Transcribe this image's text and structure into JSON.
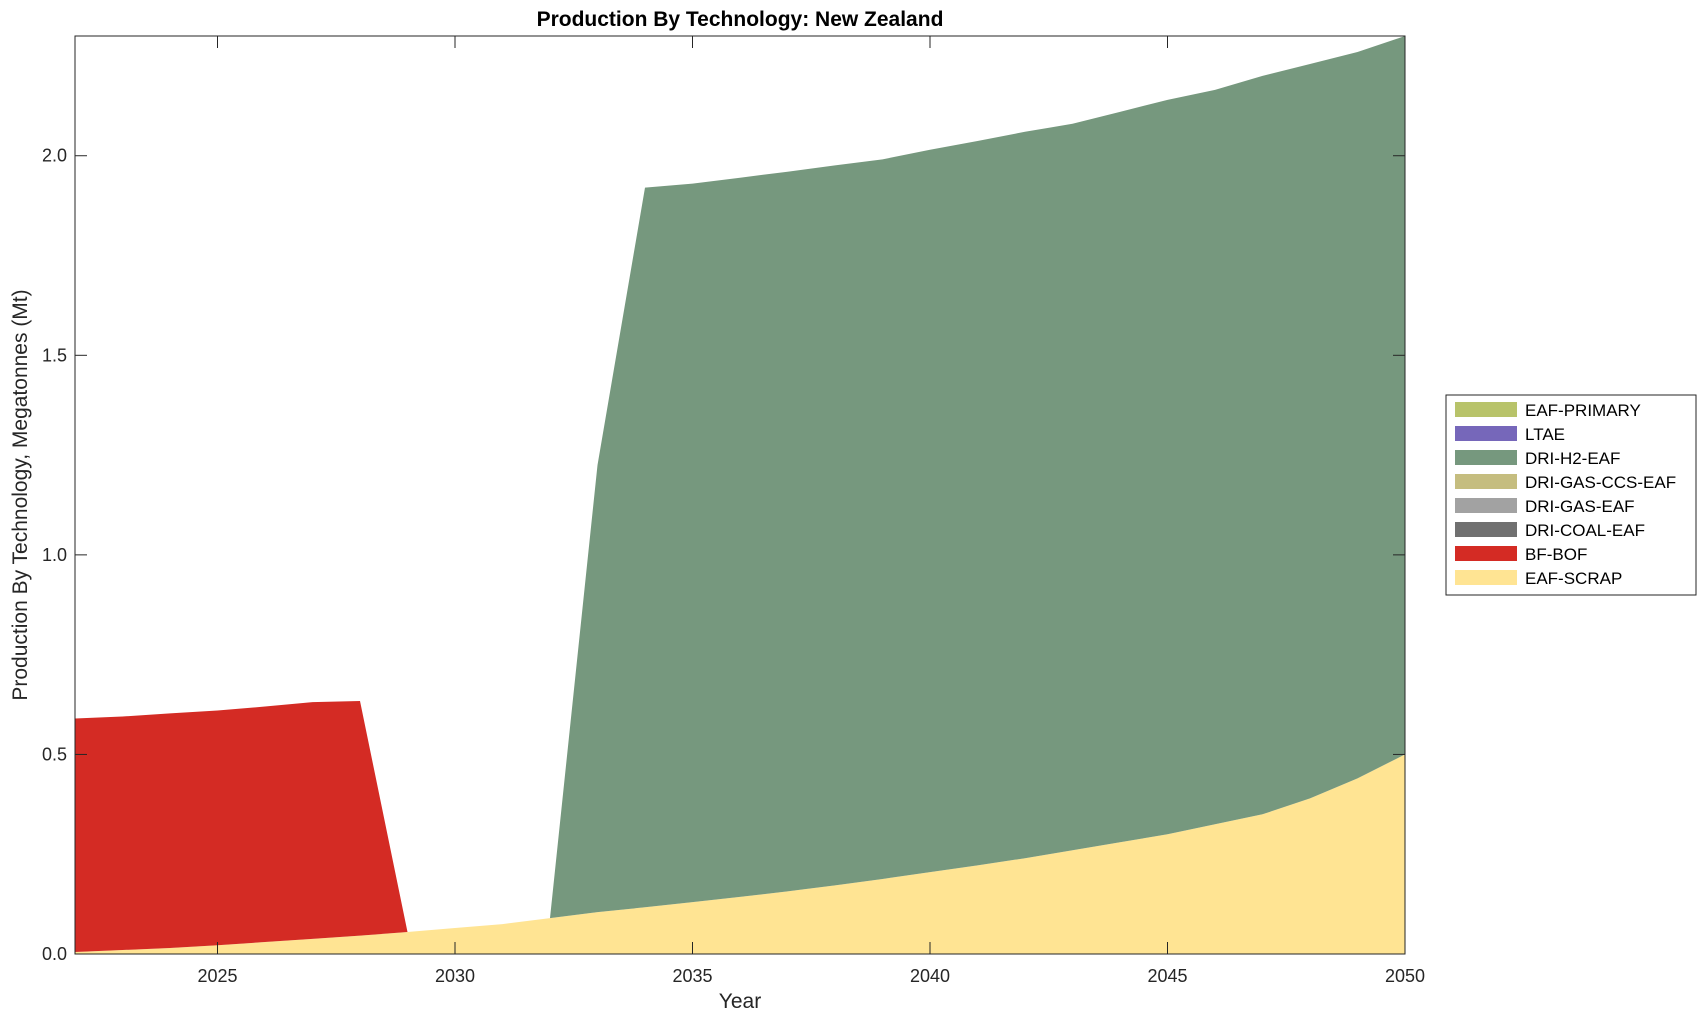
{
  "chart_data": {
    "type": "area",
    "stacked": true,
    "title": "Production By Technology: New Zealand",
    "xlabel": "Year",
    "ylabel": "Production By Technology, Megatonnes (Mt)",
    "xlim": [
      2022,
      2050
    ],
    "ylim": [
      0,
      2.3
    ],
    "xticks": [
      2025,
      2030,
      2035,
      2040,
      2045,
      2050
    ],
    "yticks": [
      0,
      0.5,
      1,
      1.5,
      2
    ],
    "ytick_labels": [
      "0.0",
      "0.5",
      "1.0",
      "1.5",
      "2.0"
    ],
    "grid": false,
    "legend_position": "right",
    "x": [
      2022,
      2023,
      2024,
      2025,
      2026,
      2027,
      2028,
      2029,
      2030,
      2031,
      2032,
      2033,
      2034,
      2035,
      2036,
      2037,
      2038,
      2039,
      2040,
      2041,
      2042,
      2043,
      2044,
      2045,
      2046,
      2047,
      2048,
      2049,
      2050
    ],
    "series": [
      {
        "name": "EAF-SCRAP",
        "color": "#FFE493",
        "values": [
          0.005,
          0.01,
          0.015,
          0.022,
          0.03,
          0.038,
          0.046,
          0.055,
          0.065,
          0.075,
          0.09,
          0.105,
          0.117,
          0.13,
          0.143,
          0.157,
          0.172,
          0.188,
          0.205,
          0.222,
          0.24,
          0.26,
          0.28,
          0.3,
          0.325,
          0.35,
          0.39,
          0.44,
          0.5
        ]
      },
      {
        "name": "BF-BOF",
        "color": "#D42B24",
        "values": [
          0.585,
          0.585,
          0.588,
          0.588,
          0.59,
          0.593,
          0.588,
          0,
          0,
          0,
          0,
          0,
          0,
          0,
          0,
          0,
          0,
          0,
          0,
          0,
          0,
          0,
          0,
          0,
          0,
          0,
          0,
          0,
          0
        ]
      },
      {
        "name": "DRI-COAL-EAF",
        "color": "#707070",
        "values": [
          0,
          0,
          0,
          0,
          0,
          0,
          0,
          0,
          0,
          0,
          0,
          0,
          0,
          0,
          0,
          0,
          0,
          0,
          0,
          0,
          0,
          0,
          0,
          0,
          0,
          0,
          0,
          0,
          0
        ]
      },
      {
        "name": "DRI-GAS-EAF",
        "color": "#A2A2A2",
        "values": [
          0,
          0,
          0,
          0,
          0,
          0,
          0,
          0,
          0,
          0,
          0,
          0,
          0,
          0,
          0,
          0,
          0,
          0,
          0,
          0,
          0,
          0,
          0,
          0,
          0,
          0,
          0,
          0,
          0
        ]
      },
      {
        "name": "DRI-GAS-CCS-EAF",
        "color": "#C5BD7F",
        "values": [
          0,
          0,
          0,
          0,
          0,
          0,
          0,
          0,
          0,
          0,
          0,
          0,
          0,
          0,
          0,
          0,
          0,
          0,
          0,
          0,
          0,
          0,
          0,
          0,
          0,
          0,
          0,
          0,
          0
        ]
      },
      {
        "name": "DRI-H2-EAF",
        "color": "#76987E",
        "values": [
          0,
          0,
          0,
          0,
          0,
          0,
          0,
          0,
          0,
          0,
          0,
          1.12,
          1.803,
          1.8,
          1.802,
          1.803,
          1.804,
          1.803,
          1.81,
          1.815,
          1.82,
          1.82,
          1.83,
          1.84,
          1.84,
          1.85,
          1.84,
          1.82,
          1.8
        ]
      },
      {
        "name": "LTAE",
        "color": "#7667BA",
        "values": [
          0,
          0,
          0,
          0,
          0,
          0,
          0,
          0,
          0,
          0,
          0,
          0,
          0,
          0,
          0,
          0,
          0,
          0,
          0,
          0,
          0,
          0,
          0,
          0,
          0,
          0,
          0,
          0,
          0
        ]
      },
      {
        "name": "EAF-PRIMARY",
        "color": "#B8C36A",
        "values": [
          0,
          0,
          0,
          0,
          0,
          0,
          0,
          0,
          0,
          0,
          0,
          0,
          0,
          0,
          0,
          0,
          0,
          0,
          0,
          0,
          0,
          0,
          0,
          0,
          0,
          0,
          0,
          0,
          0
        ]
      }
    ],
    "legend_order": [
      "EAF-PRIMARY",
      "LTAE",
      "DRI-H2-EAF",
      "DRI-GAS-CCS-EAF",
      "DRI-GAS-EAF",
      "DRI-COAL-EAF",
      "BF-BOF",
      "EAF-SCRAP"
    ]
  }
}
